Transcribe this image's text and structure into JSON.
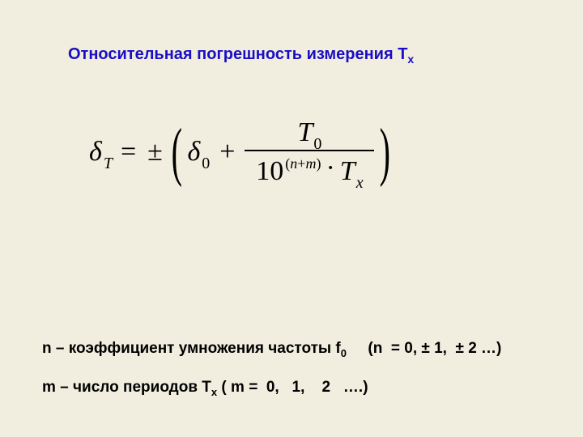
{
  "title_main": "Относительная погрешность измерения T",
  "title_sub": "x",
  "eq": {
    "delta": "δ",
    "T": "T",
    "eq_sign": "=",
    "pm": "±",
    "lparen": "(",
    "rparen": ")",
    "delta0": "δ",
    "zero": "0",
    "plus": "+",
    "num_T": "T",
    "num_0": "0",
    "ten": "10",
    "exp_l": "(",
    "exp_n": "n",
    "exp_plus": "+",
    "exp_m": "m",
    "exp_r": ")",
    "cdot": "·",
    "den_T": "T",
    "den_x": "x"
  },
  "def_n_pre": "n – коэффициент умножения частоты f",
  "def_n_sub": "0",
  "def_n_post": "     (n  = 0, ± 1,  ± 2 …)",
  "def_m_pre": "m – число периодов T",
  "def_m_sub": "x",
  "def_m_post": " ( m =  0,   1,    2   ….)",
  "colors": {
    "background": "#f1eddf",
    "title": "#1a0ec4",
    "text": "#000000"
  },
  "typography": {
    "title_fontsize": 20,
    "eq_fontsize": 34,
    "def_fontsize": 19,
    "font_family_text": "Arial",
    "font_family_math": "Times New Roman"
  }
}
